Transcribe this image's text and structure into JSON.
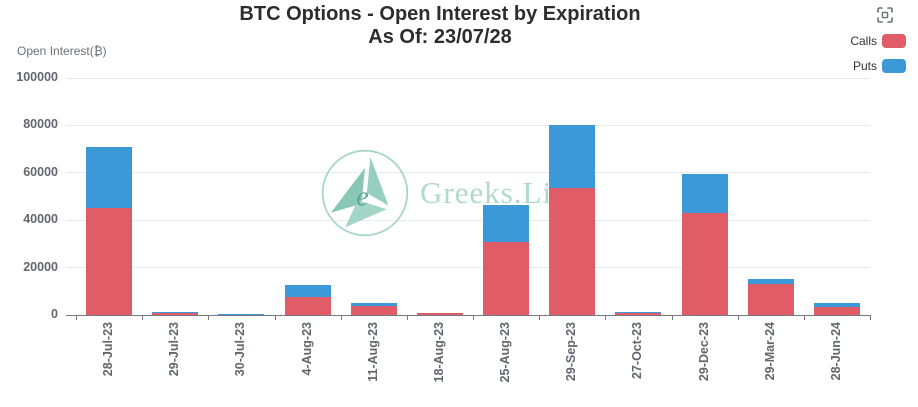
{
  "header": {
    "title": "BTC Options - Open Interest by Expiration",
    "subtitle": "As Of: 23/07/28"
  },
  "toolbox": {
    "icon": "fullscreen-icon"
  },
  "legend": {
    "position": "top-right",
    "items": [
      {
        "label": "Calls",
        "color": "#e05c66"
      },
      {
        "label": "Puts",
        "color": "#3b99d8"
      }
    ]
  },
  "watermark": {
    "text": "Greeks.Live",
    "logo": "greeks-live-logo",
    "color": "#a9d6c8"
  },
  "chart_data": {
    "type": "bar",
    "stacked": true,
    "title": "BTC Options - Open Interest by Expiration",
    "subtitle": "As Of: 23/07/28",
    "xlabel": "",
    "ylabel": "Open Interest(₿)",
    "ylim": [
      0,
      100000
    ],
    "yticks": [
      0,
      20000,
      40000,
      60000,
      80000,
      100000
    ],
    "grid": true,
    "legend_position": "top-right",
    "categories": [
      "28-Jul-23",
      "29-Jul-23",
      "30-Jul-23",
      "4-Aug-23",
      "11-Aug-23",
      "18-Aug-23",
      "25-Aug-23",
      "29-Sep-23",
      "27-Oct-23",
      "29-Dec-23",
      "29-Mar-24",
      "28-Jun-24"
    ],
    "series": [
      {
        "name": "Calls",
        "color": "#e05c66",
        "values": [
          45000,
          700,
          100,
          7500,
          3700,
          700,
          31000,
          53500,
          900,
          43000,
          13200,
          3500
        ]
      },
      {
        "name": "Puts",
        "color": "#3b99d8",
        "values": [
          26000,
          700,
          250,
          5000,
          1500,
          100,
          15500,
          26500,
          500,
          16500,
          2000,
          1500
        ]
      }
    ]
  }
}
